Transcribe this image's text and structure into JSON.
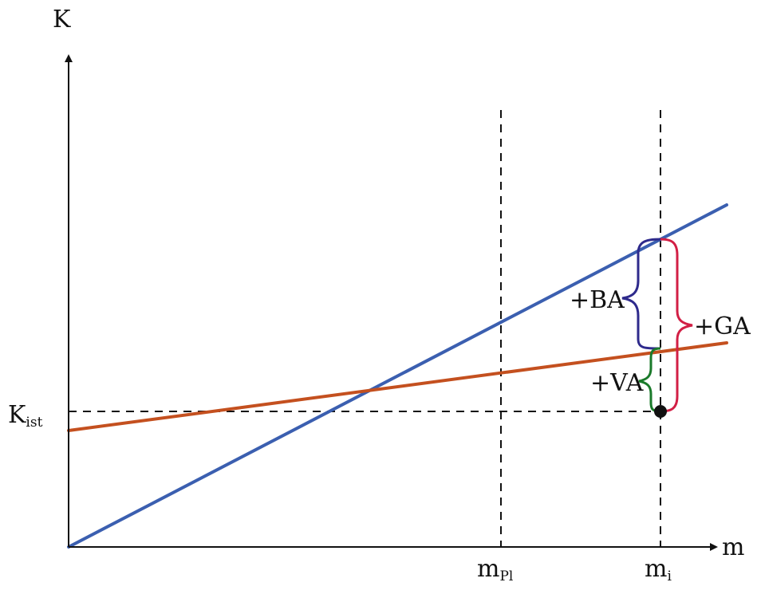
{
  "axes": {
    "y_label": "K",
    "x_label": "m"
  },
  "k_ist": {
    "main": "K",
    "sub": "ist"
  },
  "m_pl": {
    "main": "m",
    "sub": "Pl"
  },
  "m_i": {
    "main": "m",
    "sub": "i"
  },
  "braces": {
    "ba": "+BA",
    "va": "+VA",
    "ga": "+GA"
  },
  "colors": {
    "blue_line": "#3b5fb0",
    "red_line": "#c4501f",
    "brace_ba": "#2e2a8c",
    "brace_va": "#1a7a2a",
    "brace_ga": "#d21f45",
    "axis": "#111111"
  }
}
